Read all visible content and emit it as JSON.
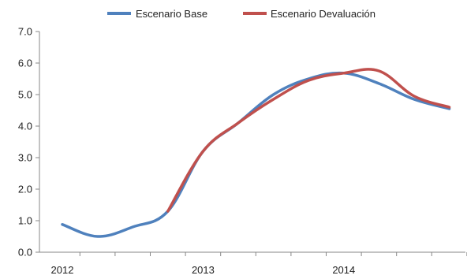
{
  "chart_data": {
    "type": "line",
    "title": "",
    "xlabel": "",
    "ylabel": "",
    "ylim": [
      0,
      7
    ],
    "yticks": [
      "0.0",
      "1.0",
      "2.0",
      "3.0",
      "4.0",
      "5.0",
      "6.0",
      "7.0"
    ],
    "x_quarters": [
      "2012Q1",
      "2012Q2",
      "2012Q3",
      "2012Q4",
      "2013Q1",
      "2013Q2",
      "2013Q3",
      "2013Q4",
      "2014Q1",
      "2014Q2",
      "2014Q3",
      "2014Q4"
    ],
    "x_year_labels": [
      {
        "label": "2012",
        "quarter": "2012Q1"
      },
      {
        "label": "2013",
        "quarter": "2013Q1"
      },
      {
        "label": "2014",
        "quarter": "2014Q1"
      }
    ],
    "grid": false,
    "legend_position": "top",
    "series": [
      {
        "name": "Escenario Base",
        "color": "#4F81BD",
        "values": [
          0.88,
          0.5,
          0.8,
          1.3,
          3.2,
          4.1,
          5.0,
          5.5,
          5.68,
          5.35,
          4.85,
          4.55
        ]
      },
      {
        "name": "Escenario Devaluación",
        "color": "#C0504D",
        "values": [
          null,
          null,
          null,
          1.3,
          3.2,
          4.1,
          4.85,
          5.45,
          5.68,
          5.75,
          4.95,
          4.6
        ]
      }
    ]
  }
}
